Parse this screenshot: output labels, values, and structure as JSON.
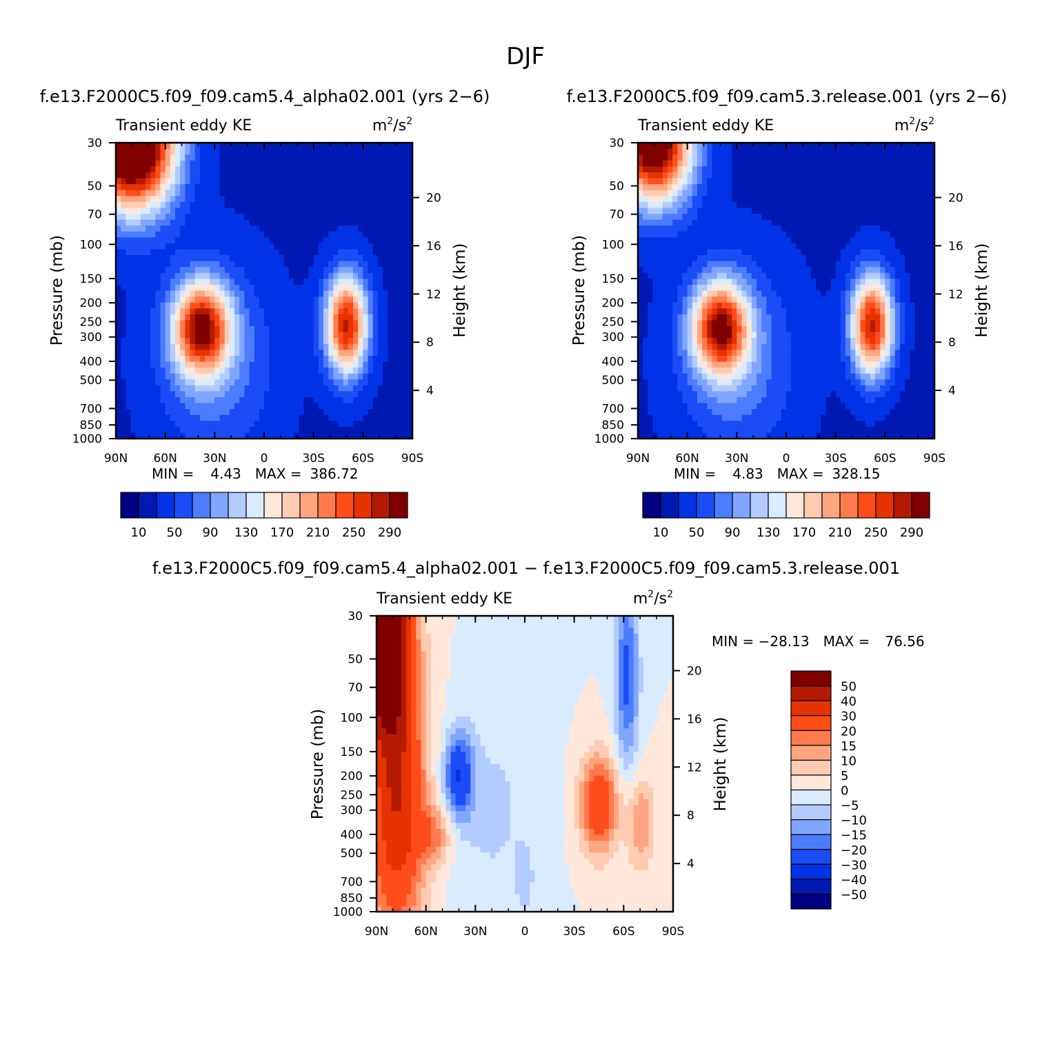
{
  "title": "DJF",
  "colors": {
    "abs_levels": [
      "#000080",
      "#0019b3",
      "#0033e6",
      "#1a4df5",
      "#4d7dff",
      "#80a6ff",
      "#b3ccff",
      "#d9ebff",
      "#ffe8d9",
      "#ffccb3",
      "#ffa680",
      "#ff7a4d",
      "#ff4d1a",
      "#e63300",
      "#b31a00",
      "#800000"
    ],
    "diff_levels": [
      "#000080",
      "#0019b3",
      "#0033e6",
      "#1a4df5",
      "#4d7dff",
      "#80a6ff",
      "#b3ccff",
      "#d9ebff",
      "#ffe8d9",
      "#ffccb3",
      "#ffa680",
      "#ff7a4d",
      "#ff4d1a",
      "#e63300",
      "#b31a00",
      "#800000"
    ]
  },
  "chart_data": [
    {
      "type": "heatmap",
      "id": "cam54",
      "title": "f.e13.F2000C5.f09_f09.cam5.4_alpha02.001 (yrs 2−6)",
      "left_label": "Transient eddy KE",
      "units_base": "m",
      "units_den": "/s",
      "units_exp": "2",
      "ylabel": "Pressure (mb)",
      "y2label": "Height (km)",
      "x_ticks": [
        "90N",
        "60N",
        "30N",
        "0",
        "30S",
        "60S",
        "90S"
      ],
      "x_range": [
        90,
        -90
      ],
      "y_ticks": [
        30,
        50,
        70,
        100,
        150,
        200,
        250,
        300,
        400,
        500,
        700,
        850,
        1000
      ],
      "y_range_mb": [
        30,
        1000
      ],
      "height_ticks_km": [
        20,
        16,
        12,
        8,
        4
      ],
      "min_label": "MIN =",
      "min_value": "4.43",
      "max_label": "MAX =",
      "max_value": "386.72",
      "features": [
        {
          "lat": 80,
          "p": 30,
          "amp": 380,
          "sx": 18,
          "sy": 0.55
        },
        {
          "lat": 38,
          "p": 270,
          "amp": 240,
          "sx": 12,
          "sy": 0.38
        },
        {
          "lat": -50,
          "p": 260,
          "amp": 250,
          "sx": 9,
          "sy": 0.42
        },
        {
          "lat": 30,
          "p": 400,
          "amp": 60,
          "sx": 25,
          "sy": 0.8
        }
      ]
    },
    {
      "type": "heatmap",
      "id": "cam53",
      "title": "f.e13.F2000C5.f09_f09.cam5.3.release.001 (yrs 2−6)",
      "left_label": "Transient eddy KE",
      "units_base": "m",
      "units_den": "/s",
      "units_exp": "2",
      "ylabel": "Pressure (mb)",
      "y2label": "Height (km)",
      "x_ticks": [
        "90N",
        "60N",
        "30N",
        "0",
        "30S",
        "60S",
        "90S"
      ],
      "x_range": [
        90,
        -90
      ],
      "y_ticks": [
        30,
        50,
        70,
        100,
        150,
        200,
        250,
        300,
        400,
        500,
        700,
        850,
        1000
      ],
      "y_range_mb": [
        30,
        1000
      ],
      "height_ticks_km": [
        20,
        16,
        12,
        8,
        4
      ],
      "min_label": "MIN =",
      "min_value": "4.83",
      "max_label": "MAX =",
      "max_value": "328.15",
      "features": [
        {
          "lat": 80,
          "p": 30,
          "amp": 320,
          "sx": 16,
          "sy": 0.5
        },
        {
          "lat": 40,
          "p": 270,
          "amp": 240,
          "sx": 12,
          "sy": 0.38
        },
        {
          "lat": -52,
          "p": 260,
          "amp": 250,
          "sx": 9,
          "sy": 0.42
        },
        {
          "lat": 30,
          "p": 400,
          "amp": 60,
          "sx": 25,
          "sy": 0.8
        }
      ]
    },
    {
      "type": "heatmap",
      "id": "diff",
      "title": "f.e13.F2000C5.f09_f09.cam5.4_alpha02.001 − f.e13.F2000C5.f09_f09.cam5.3.release.001",
      "left_label": "Transient eddy KE",
      "units_base": "m",
      "units_den": "/s",
      "units_exp": "2",
      "ylabel": "Pressure (mb)",
      "y2label": "Height (km)",
      "x_ticks": [
        "90N",
        "60N",
        "30N",
        "0",
        "30S",
        "60S",
        "90S"
      ],
      "x_range": [
        90,
        -90
      ],
      "y_ticks": [
        30,
        50,
        70,
        100,
        150,
        200,
        250,
        300,
        400,
        500,
        700,
        850,
        1000
      ],
      "y_range_mb": [
        30,
        1000
      ],
      "height_ticks_km": [
        20,
        16,
        12,
        8,
        4
      ],
      "min_label": "MIN = −28.13",
      "max_label": "MAX =",
      "max_value": "76.56",
      "features": [
        {
          "lat": 85,
          "p": 40,
          "amp": 70,
          "sx": 10,
          "sy": 0.7
        },
        {
          "lat": 78,
          "p": 250,
          "amp": 40,
          "sx": 12,
          "sy": 1.2
        },
        {
          "lat": 55,
          "p": 400,
          "amp": 15,
          "sx": 8,
          "sy": 0.25
        },
        {
          "lat": 40,
          "p": 200,
          "amp": -28,
          "sx": 6,
          "sy": 0.35
        },
        {
          "lat": 20,
          "p": 300,
          "amp": -6,
          "sx": 20,
          "sy": 0.9
        },
        {
          "lat": -45,
          "p": 280,
          "amp": 30,
          "sx": 8,
          "sy": 0.4
        },
        {
          "lat": -62,
          "p": 60,
          "amp": -22,
          "sx": 5,
          "sy": 0.8
        },
        {
          "lat": -70,
          "p": 350,
          "amp": 15,
          "sx": 6,
          "sy": 0.4
        },
        {
          "lat": 0,
          "p": 700,
          "amp": -6,
          "sx": 4,
          "sy": 0.3
        }
      ]
    }
  ],
  "abs_colorbar": {
    "levels": [
      10,
      30,
      50,
      70,
      90,
      110,
      130,
      150,
      170,
      190,
      210,
      230,
      250,
      270,
      290
    ],
    "labels": [
      "10",
      "50",
      "90",
      "130",
      "170",
      "210",
      "250",
      "290"
    ]
  },
  "diff_colorbar": {
    "levels": [
      -50,
      -40,
      -30,
      -20,
      -15,
      -10,
      -5,
      0,
      5,
      10,
      15,
      20,
      30,
      40,
      50
    ],
    "labels": [
      "50",
      "40",
      "30",
      "20",
      "15",
      "10",
      "5",
      "0",
      "−5",
      "−10",
      "−15",
      "−20",
      "−30",
      "−40",
      "−50"
    ]
  }
}
